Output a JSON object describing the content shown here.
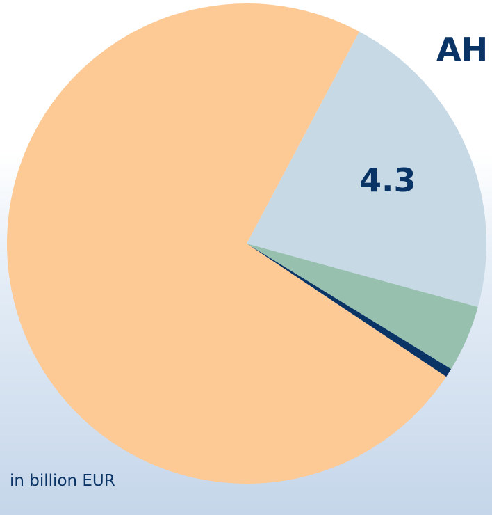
{
  "chart_data": {
    "type": "pie",
    "title": "AH",
    "unit_note": "in billion EUR",
    "slices": [
      {
        "name": "",
        "value": 4.3,
        "label": "4.3",
        "color": "#c8d9e6"
      },
      {
        "name": "",
        "value": 0.9,
        "label": "",
        "color": "#97c0ae"
      },
      {
        "name": "",
        "value": 0.12,
        "label": "",
        "color": "#0b3466"
      },
      {
        "name": "",
        "value": 14.7,
        "label": "",
        "color": "#fdc995"
      }
    ],
    "start_angle_deg": 62,
    "direction": "clockwise"
  }
}
